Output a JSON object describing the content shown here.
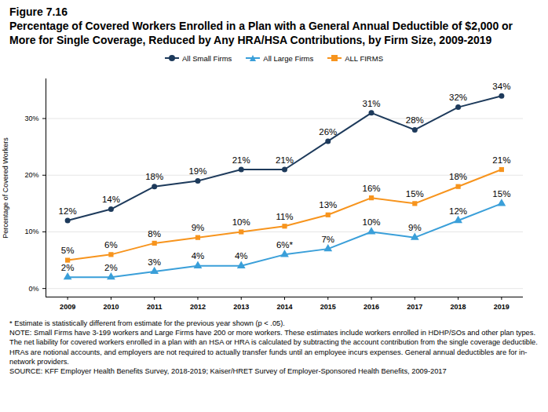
{
  "chart_data": {
    "type": "line",
    "title": "Figure 7.16",
    "subtitle": "Percentage of Covered Workers Enrolled in a Plan with a General Annual Deductible of $2,000 or More for Single Coverage, Reduced by Any HRA/HSA Contributions, by Firm Size, 2009-2019",
    "y_label": "Percentage of Covered Workers",
    "x": [
      2009,
      2010,
      2011,
      2012,
      2013,
      2014,
      2015,
      2016,
      2017,
      2018,
      2019
    ],
    "xlim": [
      2008.5,
      2019.5
    ],
    "xticks": [
      2009,
      2010,
      2011,
      2012,
      2013,
      2014,
      2015,
      2016,
      2017,
      2018,
      2019
    ],
    "ylim": [
      -1.5,
      37
    ],
    "yticks": [
      {
        "value": 0,
        "label": "0%"
      },
      {
        "value": 10,
        "label": "10%"
      },
      {
        "value": 20,
        "label": "20%"
      },
      {
        "value": 30,
        "label": "30%"
      }
    ],
    "grid": true,
    "legend": "top",
    "data_labels": true,
    "series": [
      {
        "name": "All Small Firms",
        "color": "#1d3a5b",
        "marker": "circle",
        "values": [
          12,
          14,
          18,
          19,
          21,
          21,
          26,
          31,
          28,
          32,
          34
        ],
        "value_labels": [
          "12%",
          "14%",
          "18%",
          "19%",
          "21%",
          "21%",
          "26%",
          "31%",
          "28%",
          "32%",
          "34%"
        ]
      },
      {
        "name": "All Large Firms",
        "color": "#3a9fd9",
        "marker": "triangle",
        "values": [
          2,
          2,
          3,
          4,
          4,
          6,
          7,
          10,
          9,
          12,
          15
        ],
        "value_labels": [
          "2%",
          "2%",
          "3%",
          "4%",
          "4%",
          "6%*",
          "7%",
          "10%",
          "9%",
          "12%",
          "15%"
        ]
      },
      {
        "name": "ALL FIRMS",
        "color": "#f7941d",
        "marker": "square",
        "values": [
          5,
          6,
          8,
          9,
          10,
          11,
          13,
          16,
          15,
          18,
          21
        ],
        "value_labels": [
          "5%",
          "6%",
          "8%",
          "9%",
          "10%",
          "11%",
          "13%",
          "16%",
          "15%",
          "18%",
          "21%"
        ]
      }
    ],
    "footnotes": [
      "* Estimate is statistically different from estimate for the previous year shown (p < .05).",
      "NOTE: Small Firms have 3-199 workers and Large Firms have 200 or more workers. These estimates include workers enrolled in HDHP/SOs and other plan types. The net liability for covered workers enrolled in a plan with an HSA or HRA is calculated by subtracting the account contribution from the single coverage deductible. HRAs are notional accounts, and employers are not required to actually transfer funds until an employee incurs expenses. General annual deductibles are for in-network providers.",
      "SOURCE: KFF Employer Health Benefits Survey, 2018-2019; Kaiser/HRET Survey of Employer-Sponsored Health Benefits, 2009-2017"
    ]
  }
}
